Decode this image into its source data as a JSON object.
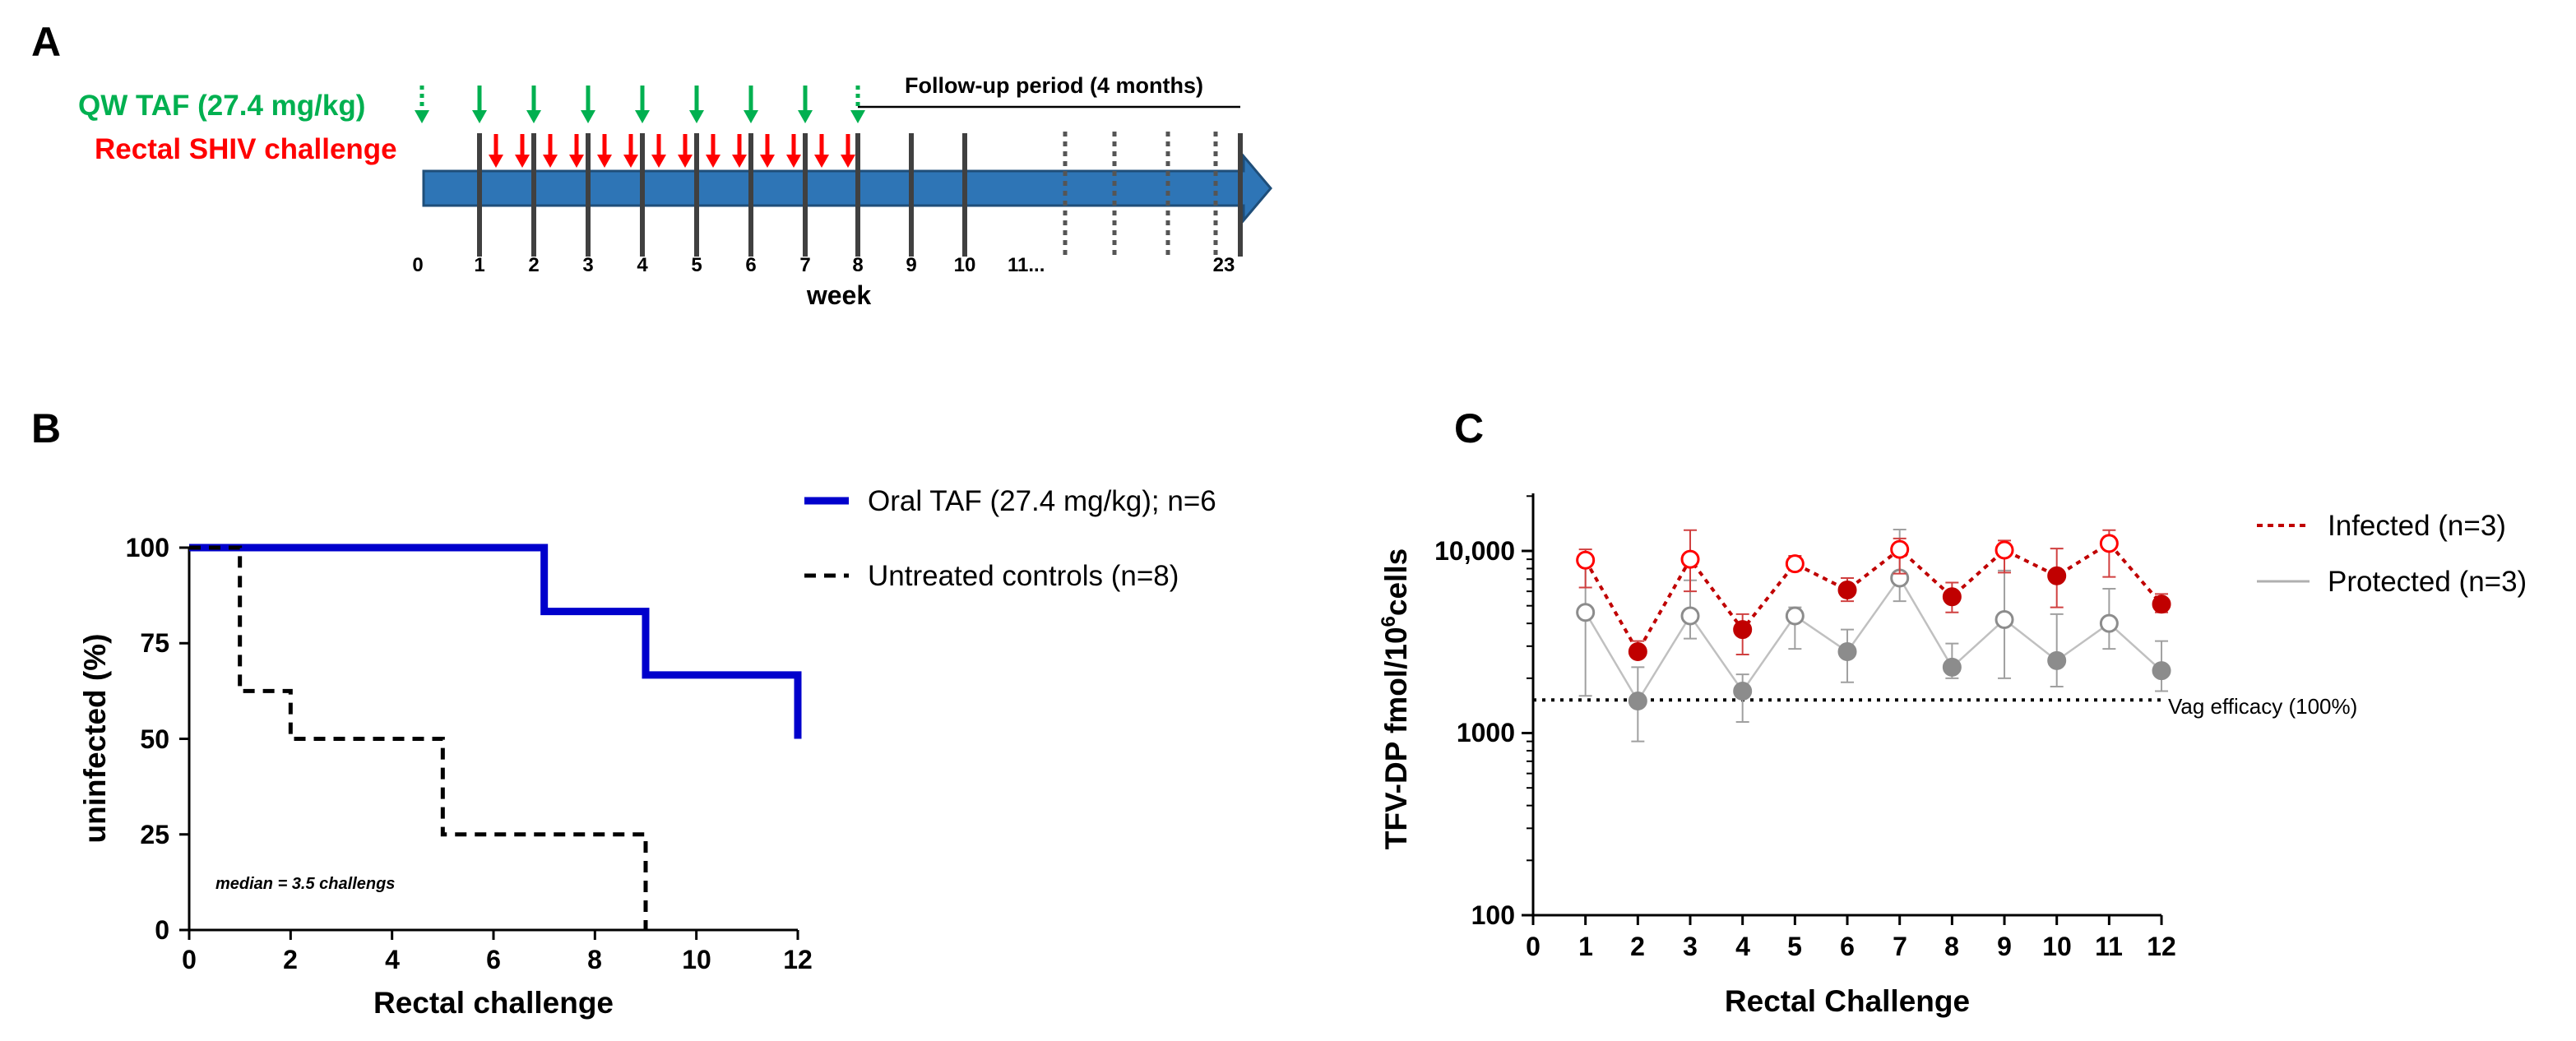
{
  "chart_data": [
    {
      "panel": "A",
      "type": "timeline",
      "labels": {
        "dose": "QW TAF (27.4 mg/kg)",
        "challenge": "Rectal SHIV challenge",
        "followup": "Follow-up period (4 months)",
        "axis": "week",
        "tick_after_11": "11...",
        "last_tick": "23"
      },
      "ticks": [
        "0",
        "1",
        "2",
        "3",
        "4",
        "5",
        "6",
        "7",
        "8",
        "9",
        "10"
      ],
      "dose_weeks_dotted": [
        0,
        8
      ],
      "dose_weeks_solid": [
        1,
        2,
        3,
        4,
        5,
        6,
        7
      ],
      "challenges_per_week": 2,
      "challenge_weeks": [
        1,
        2,
        3,
        4,
        5,
        6,
        7
      ],
      "colors": {
        "dose": "#00b050",
        "challenge": "#ff0000",
        "bar": "#2e75b6",
        "bar_edge": "#1f4e79"
      }
    },
    {
      "panel": "B",
      "type": "line",
      "subtype": "step",
      "title": "",
      "xlabel": "Rectal challenge",
      "ylabel": "uninfected (%)",
      "xlim": [
        0,
        12
      ],
      "ylim": [
        0,
        100
      ],
      "xticks": [
        0,
        2,
        4,
        6,
        8,
        10,
        12
      ],
      "yticks": [
        0,
        25,
        50,
        75,
        100
      ],
      "annotation": "median = 3.5 challengs",
      "series": [
        {
          "name": "Oral TAF (27.4 mg/kg); n=6",
          "color": "#0000cc",
          "style": "solid",
          "x": [
            0,
            7,
            9,
            12
          ],
          "y": [
            100,
            83.3,
            66.7,
            50
          ]
        },
        {
          "name": "Untreated controls (n=8)",
          "color": "#000000",
          "style": "dashed",
          "x": [
            0,
            1,
            2,
            5,
            9
          ],
          "y": [
            100,
            62.5,
            50,
            25,
            0
          ]
        }
      ]
    },
    {
      "panel": "C",
      "type": "scatter",
      "scale": "log",
      "xlabel": "Rectal Challenge",
      "ylabel_main": "TFV-DP fmol/10",
      "ylabel_sup": "6",
      "ylabel_tail": "cells",
      "xlim": [
        0,
        12
      ],
      "ylim": [
        100,
        20000
      ],
      "xticks": [
        0,
        1,
        2,
        3,
        4,
        5,
        6,
        7,
        8,
        9,
        10,
        11,
        12
      ],
      "ytick_labels": [
        "100",
        "1000",
        "10,000"
      ],
      "reference_line": {
        "label": "Vag efficacy (100%)",
        "value": 1520
      },
      "series": [
        {
          "name": "Infected (n=3)",
          "color": "#c00000",
          "style": "dotted",
          "x": [
            1,
            2,
            3,
            4,
            5,
            6,
            7,
            8,
            9,
            10,
            11,
            12
          ],
          "y": [
            8900,
            2800,
            9000,
            3700,
            8500,
            6100,
            10200,
            5600,
            10100,
            7300,
            11000,
            5100
          ],
          "filled": [
            false,
            true,
            false,
            true,
            false,
            true,
            false,
            true,
            false,
            true,
            false,
            true
          ],
          "err_hi": [
            1300,
            400,
            4000,
            800,
            900,
            1000,
            1500,
            1100,
            1300,
            3000,
            2000,
            700
          ],
          "err_lo": [
            2600,
            0,
            3000,
            1000,
            700,
            800,
            2700,
            1000,
            2500,
            2400,
            3800,
            500
          ]
        },
        {
          "name": "Protected (n=3)",
          "color": "#808080",
          "style": "solid",
          "x": [
            1,
            2,
            3,
            4,
            5,
            6,
            7,
            8,
            9,
            10,
            11,
            12
          ],
          "y": [
            4600,
            1500,
            4400,
            1700,
            4400,
            2800,
            7100,
            2300,
            4200,
            2500,
            4000,
            2200
          ],
          "filled": [
            false,
            true,
            false,
            true,
            false,
            true,
            false,
            true,
            false,
            true,
            false,
            true
          ],
          "err_hi": [
            3800,
            800,
            2500,
            400,
            500,
            900,
            6000,
            800,
            3600,
            2000,
            2200,
            1000
          ],
          "err_lo": [
            3000,
            600,
            1100,
            550,
            1500,
            900,
            1800,
            300,
            2200,
            700,
            1100,
            500
          ]
        }
      ]
    }
  ],
  "panels": {
    "a": "A",
    "b": "B",
    "c": "C"
  }
}
